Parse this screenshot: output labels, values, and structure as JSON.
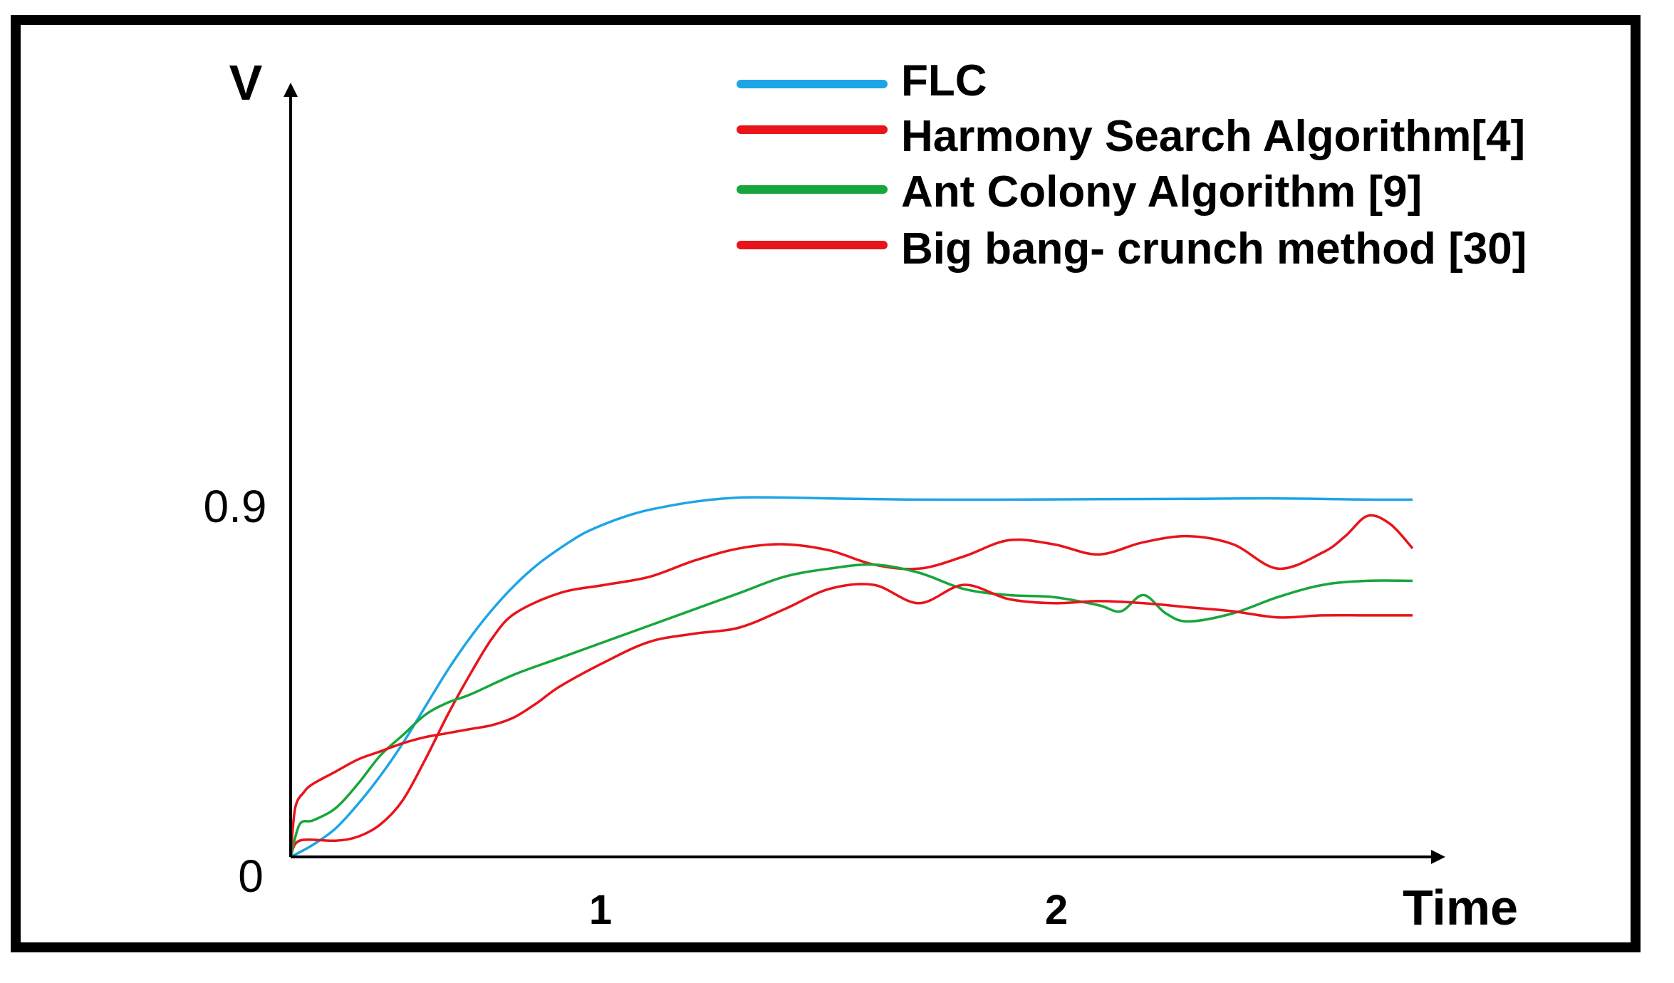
{
  "chart_data": {
    "type": "line",
    "title": "",
    "xlabel": "Time",
    "ylabel": "V",
    "xlim": [
      0,
      2.5
    ],
    "ylim": [
      0,
      1.9
    ],
    "x_ticks": [
      {
        "value": 1,
        "label": "1"
      },
      {
        "value": 2,
        "label": "2"
      }
    ],
    "y_ticks": [
      {
        "value": 0,
        "label": "0"
      },
      {
        "value": 0.9,
        "label": "0.9"
      }
    ],
    "legend_position": "top-right",
    "grid": false,
    "series": [
      {
        "name": "FLC",
        "color": "#1ea5e6",
        "x": [
          0,
          0.05,
          0.1,
          0.15,
          0.2,
          0.25,
          0.3,
          0.35,
          0.4,
          0.45,
          0.5,
          0.55,
          0.6,
          0.65,
          0.7,
          0.75,
          0.8,
          0.9,
          1.0,
          1.1,
          1.2,
          1.4,
          1.6,
          1.8,
          2.0,
          2.2,
          2.4,
          2.5
        ],
        "y": [
          0,
          0.03,
          0.07,
          0.13,
          0.2,
          0.28,
          0.37,
          0.46,
          0.54,
          0.61,
          0.67,
          0.72,
          0.76,
          0.795,
          0.82,
          0.84,
          0.855,
          0.875,
          0.885,
          0.885,
          0.883,
          0.88,
          0.88,
          0.881,
          0.882,
          0.883,
          0.88,
          0.88
        ]
      },
      {
        "name": "Harmony Search Algorithm[4]",
        "color": "#e8141a",
        "x": [
          0,
          0.02,
          0.1,
          0.15,
          0.2,
          0.25,
          0.3,
          0.35,
          0.4,
          0.45,
          0.5,
          0.6,
          0.7,
          0.8,
          0.9,
          1.0,
          1.1,
          1.2,
          1.3,
          1.4,
          1.5,
          1.6,
          1.7,
          1.8,
          1.9,
          2.0,
          2.1,
          2.2,
          2.3,
          2.35,
          2.4,
          2.45,
          2.5
        ],
        "y": [
          0,
          0.04,
          0.04,
          0.05,
          0.08,
          0.14,
          0.24,
          0.35,
          0.45,
          0.54,
          0.6,
          0.65,
          0.67,
          0.69,
          0.73,
          0.76,
          0.77,
          0.755,
          0.72,
          0.71,
          0.74,
          0.78,
          0.77,
          0.745,
          0.775,
          0.79,
          0.77,
          0.71,
          0.75,
          0.79,
          0.84,
          0.82,
          0.76
        ]
      },
      {
        "name": "Ant Colony Algorithm [9]",
        "color": "#17a63b",
        "x": [
          0,
          0.02,
          0.05,
          0.1,
          0.15,
          0.2,
          0.25,
          0.3,
          0.35,
          0.4,
          0.5,
          0.6,
          0.7,
          0.8,
          0.9,
          1.0,
          1.1,
          1.2,
          1.3,
          1.4,
          1.5,
          1.6,
          1.7,
          1.8,
          1.85,
          1.9,
          1.95,
          2.0,
          2.1,
          2.2,
          2.3,
          2.4,
          2.5
        ],
        "y": [
          0,
          0.08,
          0.09,
          0.12,
          0.18,
          0.25,
          0.3,
          0.35,
          0.38,
          0.4,
          0.45,
          0.49,
          0.53,
          0.57,
          0.61,
          0.65,
          0.69,
          0.71,
          0.72,
          0.7,
          0.66,
          0.645,
          0.64,
          0.62,
          0.605,
          0.645,
          0.6,
          0.58,
          0.6,
          0.64,
          0.67,
          0.68,
          0.68
        ]
      },
      {
        "name": "Big bang- crunch method [30]",
        "color": "#e8141a",
        "x": [
          0,
          0.01,
          0.03,
          0.05,
          0.1,
          0.15,
          0.2,
          0.25,
          0.3,
          0.35,
          0.4,
          0.45,
          0.5,
          0.55,
          0.6,
          0.7,
          0.8,
          0.9,
          1.0,
          1.1,
          1.2,
          1.3,
          1.4,
          1.5,
          1.6,
          1.7,
          1.8,
          1.9,
          2.0,
          2.1,
          2.2,
          2.3,
          2.4,
          2.5
        ],
        "y": [
          0,
          0.12,
          0.16,
          0.18,
          0.21,
          0.24,
          0.26,
          0.28,
          0.295,
          0.305,
          0.315,
          0.325,
          0.345,
          0.38,
          0.42,
          0.48,
          0.53,
          0.55,
          0.565,
          0.61,
          0.66,
          0.67,
          0.625,
          0.67,
          0.635,
          0.625,
          0.63,
          0.625,
          0.615,
          0.605,
          0.59,
          0.595,
          0.595,
          0.595
        ]
      }
    ]
  }
}
